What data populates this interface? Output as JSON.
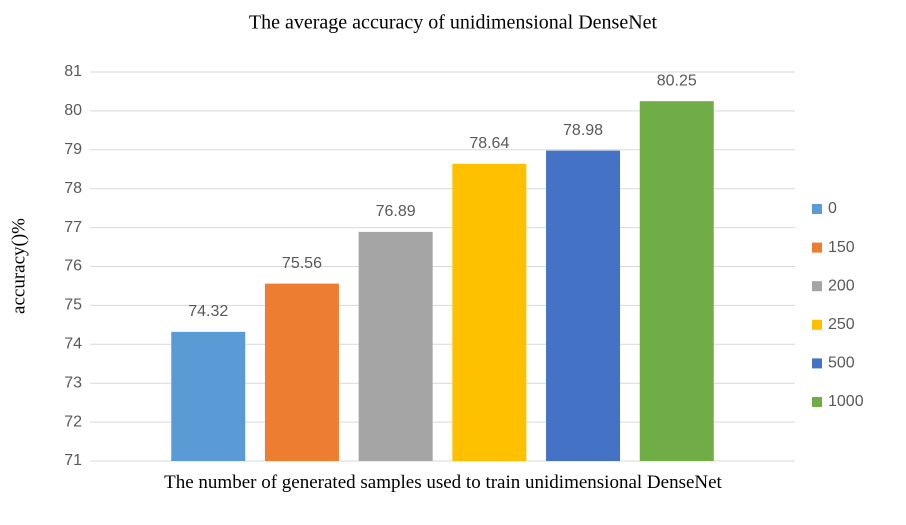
{
  "chart_data": {
    "type": "bar",
    "title": "The average accuracy of unidimensional DenseNet",
    "x_label": "The number of generated samples used to train unidimensional DenseNet",
    "y_label": "accuracy()%",
    "categories": [
      null
    ],
    "series": [
      {
        "name": "0",
        "color": "#5b9bd5",
        "values": [
          74.32
        ]
      },
      {
        "name": "150",
        "color": "#ed7d31",
        "values": [
          75.56
        ]
      },
      {
        "name": "200",
        "color": "#a5a5a5",
        "values": [
          76.89
        ]
      },
      {
        "name": "250",
        "color": "#ffc000",
        "values": [
          78.64
        ]
      },
      {
        "name": "500",
        "color": "#4472c4",
        "values": [
          78.98
        ]
      },
      {
        "name": "1000",
        "color": "#70ad47",
        "values": [
          80.25
        ]
      }
    ],
    "ylim": [
      71,
      81
    ],
    "yticks": [
      71,
      72,
      73,
      74,
      75,
      76,
      77,
      78,
      79,
      80,
      81
    ],
    "grid": true,
    "legend": "right"
  }
}
